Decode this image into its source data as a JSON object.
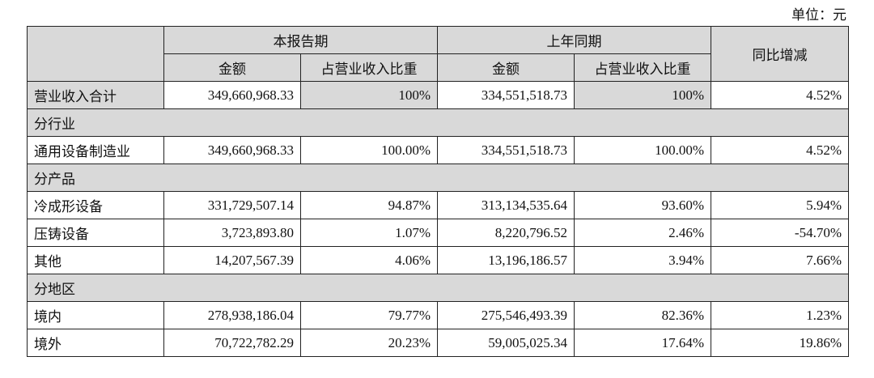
{
  "unit": "单位：元",
  "header": {
    "current": "本报告期",
    "prior": "上年同期",
    "yoy": "同比增减",
    "sub": [
      "金额",
      "占营业收入比重",
      "金额",
      "占营业收入比重"
    ]
  },
  "rows": [
    [
      "营业收入合计",
      "349,660,968.33",
      "100%",
      "334,551,518.73",
      "100%",
      "4.52%"
    ],
    [
      "分行业"
    ],
    [
      "通用设备制造业",
      "349,660,968.33",
      "100.00%",
      "334,551,518.73",
      "100.00%",
      "4.52%"
    ],
    [
      "分产品"
    ],
    [
      "冷成形设备",
      "331,729,507.14",
      "94.87%",
      "313,134,535.64",
      "93.60%",
      "5.94%"
    ],
    [
      "压铸设备",
      "3,723,893.80",
      "1.07%",
      "8,220,796.52",
      "2.46%",
      "-54.70%"
    ],
    [
      "其他",
      "14,207,567.39",
      "4.06%",
      "13,196,186.57",
      "3.94%",
      "7.66%"
    ],
    [
      "分地区"
    ],
    [
      "境内",
      "278,938,186.04",
      "79.77%",
      "275,546,493.39",
      "82.36%",
      "1.23%"
    ],
    [
      "境外",
      "70,722,782.29",
      "20.23%",
      "59,005,025.34",
      "17.64%",
      "19.86%"
    ]
  ]
}
